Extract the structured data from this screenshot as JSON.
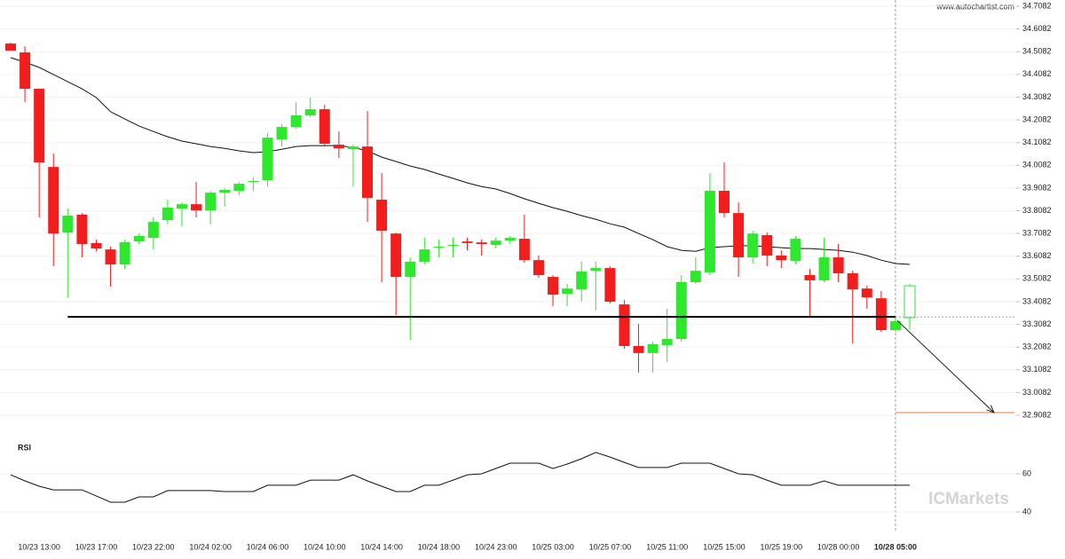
{
  "header": {
    "source": "www.autochartist.com",
    "watermark": "ICMarkets"
  },
  "chart_data": [
    {
      "type": "candlestick",
      "categories": [
        null,
        null,
        "10/23 13:00",
        null,
        null,
        null,
        "10/23 17:00",
        null,
        null,
        null,
        "10/23 22:00",
        null,
        null,
        null,
        "10/24 02:00",
        null,
        null,
        null,
        "10/24 06:00",
        null,
        null,
        null,
        "10/24 10:00",
        null,
        null,
        null,
        "10/24 14:00",
        null,
        null,
        null,
        "10/24 18:00",
        null,
        null,
        null,
        "10/24 23:00",
        null,
        null,
        null,
        "10/25 03:00",
        null,
        null,
        null,
        "10/25 07:00",
        null,
        null,
        null,
        "10/25 11:00",
        null,
        null,
        null,
        "10/25 15:00",
        null,
        null,
        null,
        "10/25 19:00",
        null,
        null,
        null,
        "10/28 00:00",
        null,
        null,
        null,
        "10/28 05:00",
        null
      ],
      "open": [
        34.544,
        34.505,
        34.345,
        34.001,
        33.712,
        33.791,
        33.666,
        33.638,
        33.572,
        33.673,
        33.689,
        33.767,
        33.818,
        33.837,
        33.81,
        33.888,
        33.896,
        33.935,
        33.943,
        34.122,
        34.177,
        34.228,
        34.255,
        34.099,
        34.079,
        34.091,
        33.857,
        33.708,
        33.517,
        33.584,
        33.646,
        33.654,
        33.673,
        33.669,
        33.658,
        33.677,
        33.685,
        33.591,
        33.517,
        33.443,
        33.462,
        33.544,
        33.556,
        33.396,
        33.213,
        33.182,
        33.217,
        33.244,
        33.494,
        33.537,
        33.896,
        33.798,
        33.603,
        33.701,
        33.611,
        33.587,
        33.525,
        33.502,
        33.603,
        33.533,
        33.466,
        33.423,
        33.283,
        33.338
      ],
      "high": [
        34.548,
        34.532,
        34.345,
        34.06,
        33.818,
        33.798,
        33.681,
        33.65,
        33.681,
        33.708,
        33.779,
        33.857,
        33.845,
        33.935,
        33.896,
        33.908,
        33.935,
        33.955,
        34.15,
        34.189,
        34.286,
        34.306,
        34.275,
        34.157,
        34.099,
        34.247,
        33.974,
        33.712,
        33.603,
        33.689,
        33.681,
        33.689,
        33.689,
        33.681,
        33.689,
        33.697,
        33.791,
        33.611,
        33.525,
        33.486,
        33.584,
        33.584,
        33.564,
        33.416,
        33.31,
        33.232,
        33.377,
        33.525,
        33.603,
        33.974,
        34.021,
        33.845,
        33.72,
        33.712,
        33.634,
        33.697,
        33.552,
        33.689,
        33.662,
        33.544,
        33.478,
        33.455,
        33.338,
        33.486
      ],
      "low": [
        34.513,
        34.286,
        33.779,
        33.564,
        33.427,
        33.603,
        33.63,
        33.474,
        33.552,
        33.662,
        33.638,
        33.748,
        33.74,
        33.779,
        33.748,
        33.826,
        33.876,
        33.896,
        33.915,
        34.091,
        34.169,
        34.22,
        34.091,
        34.04,
        33.915,
        33.759,
        33.494,
        33.349,
        33.24,
        33.572,
        33.603,
        33.603,
        33.634,
        33.611,
        33.642,
        33.662,
        33.579,
        33.513,
        33.388,
        33.388,
        33.408,
        33.369,
        33.4,
        33.201,
        33.096,
        33.096,
        33.142,
        33.232,
        33.486,
        33.525,
        33.779,
        33.517,
        33.576,
        33.564,
        33.556,
        33.572,
        33.341,
        33.494,
        33.494,
        33.224,
        33.377,
        33.275,
        33.275,
        33.283
      ],
      "close": [
        34.513,
        34.345,
        34.021,
        33.708,
        33.787,
        33.662,
        33.642,
        33.572,
        33.67,
        33.697,
        33.759,
        33.822,
        33.837,
        33.81,
        33.888,
        33.9,
        33.927,
        33.939,
        34.13,
        34.177,
        34.228,
        34.255,
        34.103,
        34.083,
        34.091,
        33.865,
        33.72,
        33.517,
        33.584,
        33.638,
        33.65,
        33.658,
        33.666,
        33.662,
        33.677,
        33.689,
        33.591,
        33.525,
        33.439,
        33.466,
        33.541,
        33.556,
        33.408,
        33.213,
        33.182,
        33.221,
        33.244,
        33.494,
        33.544,
        33.896,
        33.798,
        33.603,
        33.708,
        33.611,
        33.591,
        33.685,
        33.502,
        33.603,
        33.533,
        33.462,
        33.427,
        33.283,
        33.322,
        33.478
      ],
      "up_color": "#2ee82e",
      "down_color": "#f21d1d",
      "moving_average": {
        "color": "#111111",
        "values": [
          34.482,
          34.462,
          34.439,
          34.408,
          34.376,
          34.345,
          34.306,
          34.244,
          34.212,
          34.181,
          34.157,
          34.134,
          34.115,
          34.103,
          34.091,
          34.083,
          34.072,
          34.064,
          34.068,
          34.079,
          34.091,
          34.095,
          34.095,
          34.095,
          34.087,
          34.072,
          34.044,
          34.025,
          34.005,
          33.99,
          33.97,
          33.951,
          33.931,
          33.915,
          33.904,
          33.884,
          33.861,
          33.841,
          33.822,
          33.806,
          33.787,
          33.771,
          33.751,
          33.736,
          33.708,
          33.681,
          33.65,
          33.634,
          33.63,
          33.646,
          33.65,
          33.654,
          33.654,
          33.65,
          33.646,
          33.642,
          33.642,
          33.638,
          33.634,
          33.626,
          33.611,
          33.591,
          33.576,
          33.572
        ]
      },
      "support_level": 33.341,
      "support_color": "#000000",
      "target_level": 32.92,
      "target_color": "#e8823a",
      "ylim": [
        32.82,
        34.74
      ],
      "yticks": [
        32.9082,
        33.0082,
        33.1082,
        33.2082,
        33.3082,
        33.4082,
        33.5082,
        33.6082,
        33.7082,
        33.8082,
        33.9082,
        34.0082,
        34.1082,
        34.2082,
        34.3082,
        34.4082,
        34.5082,
        34.6082,
        34.7082
      ],
      "grid": true
    },
    {
      "type": "line",
      "label": "RSI",
      "color": "#111111",
      "values": [
        59.5,
        56.3,
        53.5,
        51.6,
        51.6,
        51.6,
        48.4,
        45.1,
        45.1,
        47.9,
        47.9,
        51.2,
        51.2,
        51.2,
        51.2,
        50.7,
        50.7,
        50.7,
        54.0,
        54.0,
        54.0,
        56.7,
        56.7,
        56.7,
        59.5,
        56.3,
        53.5,
        50.7,
        50.7,
        54.0,
        54.0,
        56.7,
        59.5,
        60.0,
        62.8,
        65.6,
        65.6,
        65.6,
        62.8,
        65.1,
        67.9,
        71.2,
        68.8,
        66.0,
        63.3,
        63.3,
        63.3,
        65.6,
        65.6,
        65.6,
        62.8,
        60.0,
        59.5,
        56.7,
        54.0,
        54.0,
        54.0,
        56.3,
        54.0,
        54.0,
        54.0,
        54.0,
        54.0,
        54.0
      ],
      "ylim": [
        30,
        78
      ],
      "yticks": [
        40,
        60
      ],
      "grid": true
    }
  ]
}
